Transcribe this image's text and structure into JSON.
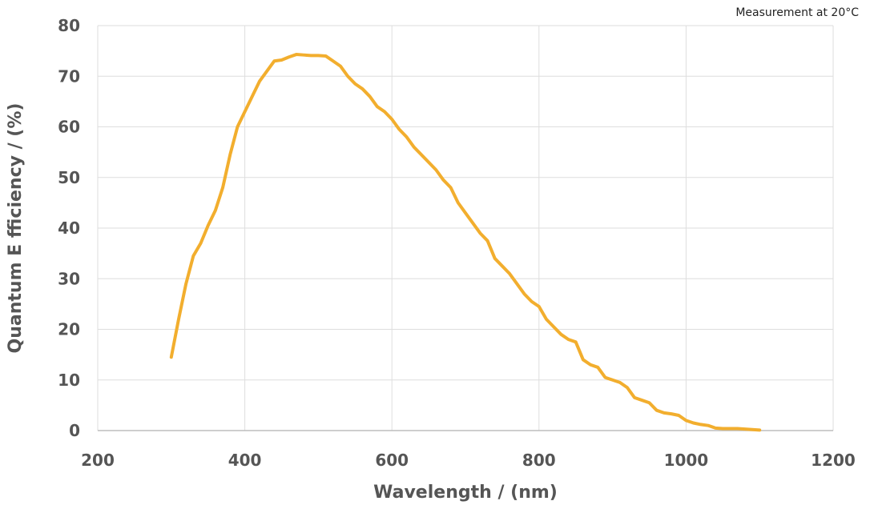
{
  "annotation": "Measurement at 20°C",
  "chart_data": {
    "type": "line",
    "title": "",
    "xlabel": "Wavelength / (nm)",
    "ylabel": "Quantum E fficiency / (%)",
    "xlim": [
      200,
      1200
    ],
    "ylim": [
      0,
      80
    ],
    "xticks": [
      200,
      400,
      600,
      800,
      1000,
      1200
    ],
    "yticks": [
      0,
      10,
      20,
      30,
      40,
      50,
      60,
      70,
      80
    ],
    "grid": true,
    "series": [
      {
        "color": "#F2AE2E",
        "x": [
          300,
          310,
          320,
          330,
          340,
          350,
          360,
          370,
          380,
          390,
          400,
          410,
          420,
          430,
          440,
          450,
          460,
          470,
          480,
          490,
          500,
          510,
          520,
          530,
          540,
          550,
          560,
          570,
          580,
          590,
          600,
          610,
          620,
          630,
          640,
          650,
          660,
          670,
          680,
          690,
          700,
          710,
          720,
          730,
          740,
          750,
          760,
          770,
          780,
          790,
          800,
          810,
          820,
          830,
          840,
          850,
          860,
          870,
          880,
          890,
          900,
          910,
          920,
          930,
          940,
          950,
          960,
          970,
          980,
          990,
          1000,
          1010,
          1020,
          1030,
          1040,
          1050,
          1060,
          1070,
          1080,
          1090,
          1100
        ],
        "y": [
          14.5,
          22,
          29,
          34.5,
          37,
          40.5,
          43.5,
          48,
          54.5,
          60,
          63,
          66,
          69,
          71,
          73,
          73.2,
          73.8,
          74.3,
          74.2,
          74.1,
          74.1,
          74.0,
          73,
          72,
          70,
          68.5,
          67.5,
          66,
          64,
          63,
          61.5,
          59.5,
          58,
          56,
          54.5,
          53,
          51.5,
          49.5,
          48,
          45,
          43,
          41,
          39,
          37.5,
          34,
          32.5,
          31,
          29,
          27,
          25.5,
          24.5,
          22,
          20.5,
          19,
          18,
          17.5,
          14,
          13,
          12.5,
          10.5,
          10,
          9.5,
          8.5,
          6.5,
          6,
          5.5,
          4,
          3.5,
          3.3,
          3,
          2,
          1.5,
          1.2,
          1.0,
          0.5,
          0.4,
          0.4,
          0.4,
          0.3,
          0.2,
          0.1
        ]
      }
    ]
  }
}
